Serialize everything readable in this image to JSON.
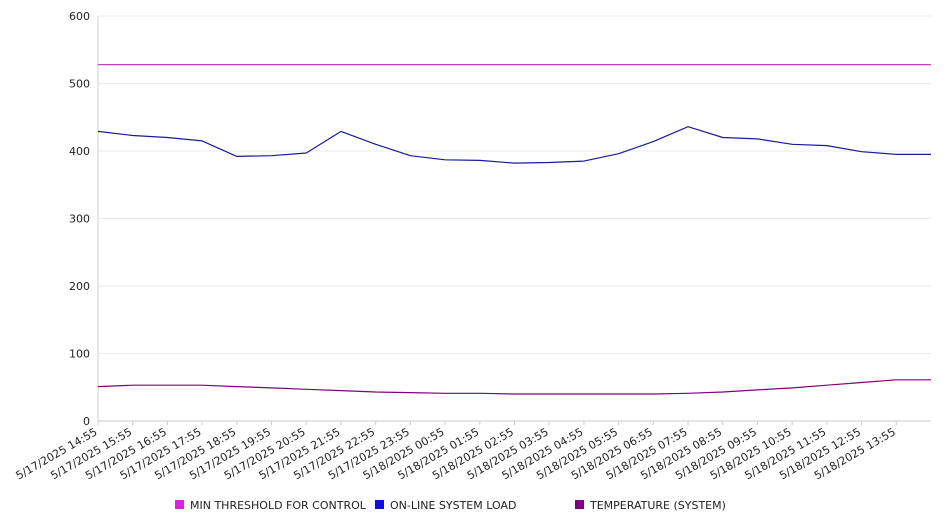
{
  "chart_data": {
    "type": "line",
    "y_axis": {
      "ylim": [
        0,
        600
      ],
      "ticks": [
        0,
        100,
        200,
        300,
        400,
        500,
        600
      ]
    },
    "x": [
      "5/17/2025 14:55",
      "5/17/2025 15:55",
      "5/17/2025 16:55",
      "5/17/2025 17:55",
      "5/17/2025 18:55",
      "5/17/2025 19:55",
      "5/17/2025 20:55",
      "5/17/2025 21:55",
      "5/17/2025 22:55",
      "5/17/2025 23:55",
      "5/18/2025 00:55",
      "5/18/2025 01:55",
      "5/18/2025 02:55",
      "5/18/2025 03:55",
      "5/18/2025 04:55",
      "5/18/2025 05:55",
      "5/18/2025 06:55",
      "5/18/2025 07:55",
      "5/18/2025 08:55",
      "5/18/2025 09:55",
      "5/18/2025 10:55",
      "5/18/2025 11:55",
      "5/18/2025 12:55",
      "5/18/2025 13:55"
    ],
    "grid": "horizontal",
    "legend_position": "bottom",
    "series": [
      {
        "name": "MIN THRESHOLD FOR CONTROL",
        "color": "#e020e0",
        "line_color": "#c040c0",
        "values": [
          528,
          528,
          528,
          528,
          528,
          528,
          528,
          528,
          528,
          528,
          528,
          528,
          528,
          528,
          528,
          528,
          528,
          528,
          528,
          528,
          528,
          528,
          528,
          528
        ]
      },
      {
        "name": "ON-LINE SYSTEM LOAD",
        "color": "#1010d0",
        "line_color": "#1a1a9a",
        "values": [
          429,
          423,
          420,
          415,
          392,
          393,
          397,
          429,
          410,
          393,
          387,
          386,
          382,
          383,
          385,
          396,
          414,
          436,
          420,
          418,
          410,
          408,
          399,
          395
        ]
      },
      {
        "name": "TEMPERATURE (SYSTEM)",
        "color": "#800080",
        "line_color": "#800080",
        "values": [
          51,
          53,
          53,
          53,
          51,
          49,
          47,
          45,
          43,
          42,
          41,
          41,
          40,
          40,
          40,
          40,
          40,
          41,
          43,
          46,
          49,
          53,
          57,
          61
        ]
      }
    ]
  }
}
